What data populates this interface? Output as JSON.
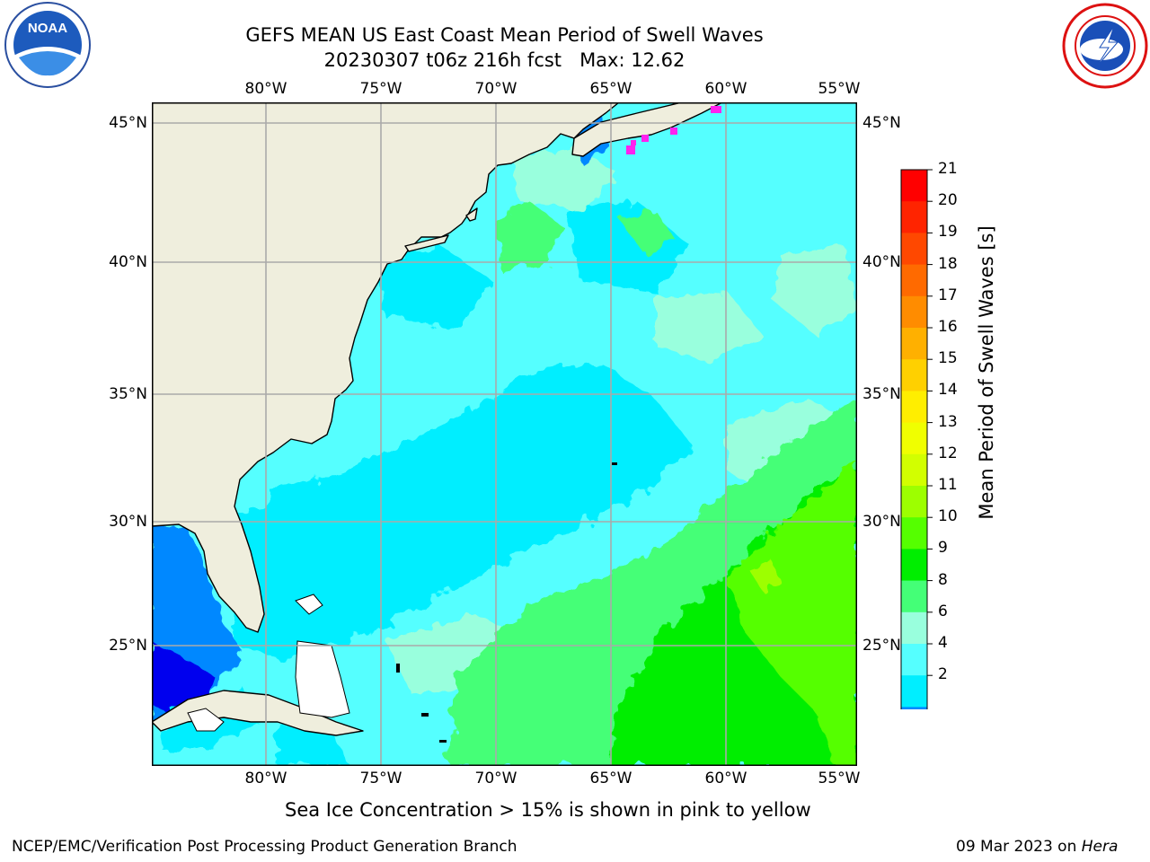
{
  "header": {
    "title_line1": "GEFS MEAN US East Coast Mean Period of Swell Waves",
    "title_line2": "20230307 t06z 216h fcst   Max: 12.62"
  },
  "logos": {
    "left": "noaa-logo",
    "right": "national-weather-service-logo"
  },
  "map": {
    "lon_ticks": [
      "80°W",
      "75°W",
      "70°W",
      "65°W",
      "60°W",
      "55°W"
    ],
    "lat_ticks": [
      "45°N",
      "40°N",
      "35°N",
      "30°N",
      "25°N"
    ],
    "colors": {
      "land": "#efeedd",
      "grid": "#aaaaaa",
      "coast": "#000000"
    }
  },
  "colorbar": {
    "label": "Mean Period of Swell Waves [s]",
    "ticks": [
      "21",
      "20",
      "19",
      "18",
      "17",
      "16",
      "15",
      "14",
      "13",
      "12",
      "11",
      "10",
      "9",
      "8",
      "6",
      "4",
      "2"
    ],
    "colors": [
      "#ff0000",
      "#ff2400",
      "#ff4800",
      "#ff6a00",
      "#ff8c00",
      "#ffb000",
      "#ffd000",
      "#ffee00",
      "#f0ff00",
      "#d2ff00",
      "#9dff00",
      "#55ff00",
      "#00ee00",
      "#44ff77",
      "#99ffdd",
      "#55ffff",
      "#00eeff",
      "#0088ff"
    ],
    "extend_color": "#0000ee"
  },
  "annotation": "Sea Ice Concentration > 15% is shown in pink to yellow",
  "footer": {
    "left": "NCEP/EMC/Verification Post Processing Product Generation Branch",
    "date": "09 Mar 2023 on ",
    "machine": "Hera"
  }
}
